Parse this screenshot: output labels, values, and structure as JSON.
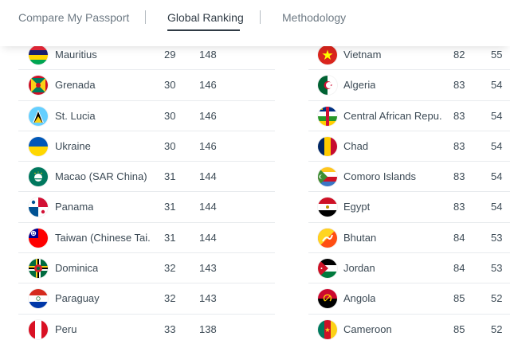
{
  "nav": {
    "tabs": [
      {
        "label": "Compare My Passport"
      },
      {
        "label": "Global Ranking"
      },
      {
        "label": "Methodology"
      }
    ]
  },
  "rankings": {
    "left": [
      {
        "country": "Mauritius",
        "rank": "29",
        "score": "148",
        "flag": "mauritius-flag-icon"
      },
      {
        "country": "Grenada",
        "rank": "30",
        "score": "146",
        "flag": "grenada-flag-icon"
      },
      {
        "country": "St. Lucia",
        "rank": "30",
        "score": "146",
        "flag": "st-lucia-flag-icon"
      },
      {
        "country": "Ukraine",
        "rank": "30",
        "score": "146",
        "flag": "ukraine-flag-icon"
      },
      {
        "country": "Macao (SAR China)",
        "rank": "31",
        "score": "144",
        "flag": "macao-flag-icon"
      },
      {
        "country": "Panama",
        "rank": "31",
        "score": "144",
        "flag": "panama-flag-icon"
      },
      {
        "country": "Taiwan (Chinese Tai...",
        "rank": "31",
        "score": "144",
        "flag": "taiwan-flag-icon"
      },
      {
        "country": "Dominica",
        "rank": "32",
        "score": "143",
        "flag": "dominica-flag-icon"
      },
      {
        "country": "Paraguay",
        "rank": "32",
        "score": "143",
        "flag": "paraguay-flag-icon"
      },
      {
        "country": "Peru",
        "rank": "33",
        "score": "138",
        "flag": "peru-flag-icon"
      }
    ],
    "right": [
      {
        "country": "Vietnam",
        "rank": "82",
        "score": "55",
        "flag": "vietnam-flag-icon"
      },
      {
        "country": "Algeria",
        "rank": "83",
        "score": "54",
        "flag": "algeria-flag-icon"
      },
      {
        "country": "Central African Repu...",
        "rank": "83",
        "score": "54",
        "flag": "central-african-republic-flag-icon"
      },
      {
        "country": "Chad",
        "rank": "83",
        "score": "54",
        "flag": "chad-flag-icon"
      },
      {
        "country": "Comoro Islands",
        "rank": "83",
        "score": "54",
        "flag": "comoros-flag-icon"
      },
      {
        "country": "Egypt",
        "rank": "83",
        "score": "54",
        "flag": "egypt-flag-icon"
      },
      {
        "country": "Bhutan",
        "rank": "84",
        "score": "53",
        "flag": "bhutan-flag-icon"
      },
      {
        "country": "Jordan",
        "rank": "84",
        "score": "53",
        "flag": "jordan-flag-icon"
      },
      {
        "country": "Angola",
        "rank": "85",
        "score": "52",
        "flag": "angola-flag-icon"
      },
      {
        "country": "Cameroon",
        "rank": "85",
        "score": "52",
        "flag": "cameroon-flag-icon"
      }
    ]
  }
}
